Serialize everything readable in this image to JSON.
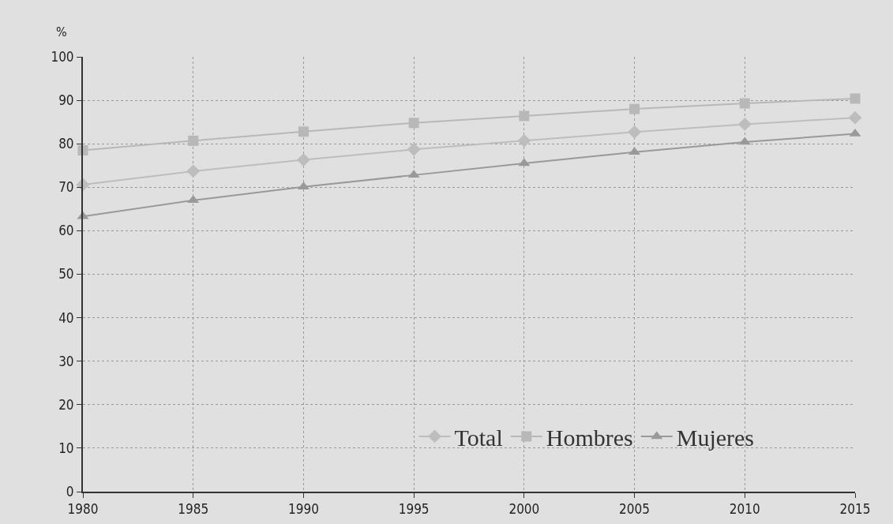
{
  "chart_data": {
    "type": "line",
    "ylabel": "%",
    "x": [
      1980,
      1985,
      1990,
      1995,
      2000,
      2005,
      2010,
      2015
    ],
    "series": [
      {
        "name": "Total",
        "color": "#bdbdbd",
        "marker": "diamond",
        "values": [
          70.6,
          73.7,
          76.3,
          78.7,
          80.7,
          82.7,
          84.5,
          86.0
        ]
      },
      {
        "name": "Hombres",
        "color": "#b8b8b8",
        "marker": "square",
        "values": [
          78.5,
          80.7,
          82.8,
          84.8,
          86.4,
          88.0,
          89.3,
          90.4
        ]
      },
      {
        "name": "Mujeres",
        "color": "#999999",
        "marker": "triangle",
        "values": [
          63.3,
          67.0,
          70.1,
          72.8,
          75.5,
          78.1,
          80.4,
          82.3
        ]
      }
    ],
    "xlim": [
      1980,
      2015
    ],
    "xticks": [
      1980,
      1985,
      1990,
      1995,
      2000,
      2005,
      2010,
      2015
    ],
    "ylim": [
      0,
      100
    ],
    "yticks": [
      0,
      10,
      20,
      30,
      40,
      50,
      60,
      70,
      80,
      90,
      100
    ],
    "grid": true,
    "legend": "bottom",
    "line_style": "solid"
  }
}
